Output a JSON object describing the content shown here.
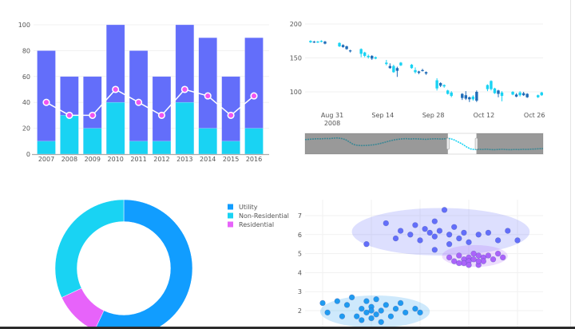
{
  "chart_data": [
    {
      "type": "bar",
      "categories": [
        "2007",
        "2008",
        "2009",
        "2010",
        "2011",
        "2012",
        "2013",
        "2014",
        "2015",
        "2016"
      ],
      "series": [
        {
          "type": "bar",
          "values": [
            80,
            60,
            60,
            100,
            80,
            60,
            100,
            90,
            60,
            90
          ],
          "color": "#636efa"
        },
        {
          "type": "bar",
          "values": [
            10,
            30,
            20,
            40,
            10,
            10,
            40,
            20,
            10,
            20
          ],
          "color": "#19d3f3"
        },
        {
          "type": "line",
          "values": [
            40,
            30,
            30,
            50,
            40,
            30,
            50,
            45,
            30,
            45
          ],
          "color": "#ef55f1"
        }
      ],
      "ylim": [
        0,
        100
      ],
      "yticks": [
        "0",
        "20",
        "40",
        "60",
        "80",
        "100"
      ],
      "grid": true
    },
    {
      "type": "candlestick",
      "increasing_color": "#19d3f3",
      "decreasing_color": "#1f6cb8",
      "ylim": [
        75,
        205
      ],
      "yticks": [
        "100",
        "150",
        "200"
      ],
      "xticks": [
        {
          "date": "2008-08-31",
          "label": "Aug 31",
          "sublabel": "2008"
        },
        {
          "date": "2008-09-14",
          "label": "Sep 14"
        },
        {
          "date": "2008-09-28",
          "label": "Sep 28"
        },
        {
          "date": "2008-10-12",
          "label": "Oct 12"
        },
        {
          "date": "2008-10-26",
          "label": "Oct 26"
        }
      ],
      "columns": [
        "date",
        "open",
        "high",
        "low",
        "close"
      ],
      "ohlc": [
        [
          "2008-08-25",
          173,
          176,
          172,
          175
        ],
        [
          "2008-08-26",
          174,
          175,
          172,
          173
        ],
        [
          "2008-08-27",
          173,
          175,
          172,
          174
        ],
        [
          "2008-08-28",
          174,
          176,
          173,
          175
        ],
        [
          "2008-08-29",
          174,
          175,
          170,
          171
        ],
        [
          "2008-09-02",
          167,
          173,
          166,
          172
        ],
        [
          "2008-09-03",
          169,
          170,
          165,
          166
        ],
        [
          "2008-09-04",
          167,
          168,
          162,
          163
        ],
        [
          "2008-09-05",
          161,
          162,
          158,
          160
        ],
        [
          "2008-09-08",
          156,
          164,
          151,
          163
        ],
        [
          "2008-09-09",
          153,
          159,
          151,
          158
        ],
        [
          "2008-09-10",
          151,
          155,
          149,
          153
        ],
        [
          "2008-09-11",
          153,
          154,
          147,
          149
        ],
        [
          "2008-09-12",
          149,
          152,
          148,
          151
        ],
        [
          "2008-09-15",
          141,
          147,
          139,
          143
        ],
        [
          "2008-09-16",
          138,
          142,
          134,
          135
        ],
        [
          "2008-09-17",
          129,
          140,
          128,
          138
        ],
        [
          "2008-09-18",
          135,
          137,
          122,
          131
        ],
        [
          "2008-09-19",
          139,
          144,
          138,
          143
        ],
        [
          "2008-09-22",
          135,
          141,
          134,
          140
        ],
        [
          "2008-09-23",
          129,
          136,
          127,
          132
        ],
        [
          "2008-09-24",
          130,
          131,
          126,
          128
        ],
        [
          "2008-09-25",
          132,
          134,
          130,
          131
        ],
        [
          "2008-09-26",
          129,
          130,
          125,
          127
        ],
        [
          "2008-09-29",
          105,
          120,
          102,
          117
        ],
        [
          "2008-09-30",
          113,
          114,
          107,
          109
        ],
        [
          "2008-10-01",
          108,
          111,
          106,
          110
        ],
        [
          "2008-10-02",
          97,
          103,
          96,
          102
        ],
        [
          "2008-10-03",
          94,
          101,
          92,
          99
        ],
        [
          "2008-10-06",
          97,
          98,
          88,
          91
        ],
        [
          "2008-10-07",
          95,
          101,
          88,
          90
        ],
        [
          "2008-10-08",
          92,
          93,
          85,
          89
        ],
        [
          "2008-10-09",
          89,
          95,
          87,
          93
        ],
        [
          "2008-10-10",
          100,
          102,
          85,
          87
        ],
        [
          "2008-10-13",
          104,
          111,
          101,
          110
        ],
        [
          "2008-10-14",
          104,
          117,
          102,
          116
        ],
        [
          "2008-10-15",
          98,
          106,
          97,
          105
        ],
        [
          "2008-10-16",
          102,
          103,
          92,
          97
        ],
        [
          "2008-10-17",
          94,
          101,
          86,
          99
        ],
        [
          "2008-10-20",
          96,
          101,
          95,
          100
        ],
        [
          "2008-10-21",
          96,
          98,
          92,
          93
        ],
        [
          "2008-10-22",
          95,
          101,
          93,
          99
        ],
        [
          "2008-10-23",
          98,
          100,
          94,
          95
        ],
        [
          "2008-10-24",
          97,
          98,
          91,
          92
        ],
        [
          "2008-10-27",
          92,
          96,
          91,
          95
        ],
        [
          "2008-10-28",
          95,
          100,
          94,
          99
        ]
      ],
      "rangeslider": {
        "visible": true,
        "selected_fraction": [
          0.6,
          0.72
        ],
        "values": [
          168,
          170,
          172,
          174,
          173,
          176,
          175,
          178,
          180,
          176,
          168,
          150,
          132,
          126,
          124,
          125,
          127,
          130,
          135,
          142,
          150,
          158,
          165,
          170,
          173,
          175,
          172,
          174,
          173,
          171,
          170,
          172,
          174,
          173,
          172,
          175,
          175,
          165,
          150,
          135,
          115,
          100,
          95,
          97,
          96,
          98,
          95,
          94,
          96,
          97,
          95,
          94,
          96,
          95,
          97,
          96,
          98,
          99,
          101,
          102
        ]
      }
    },
    {
      "type": "pie",
      "hole": 0.68,
      "labels": [
        "Utility",
        "Non-Residential",
        "Residential"
      ],
      "values": [
        57,
        32,
        11
      ],
      "colors": [
        "#119dff",
        "#19d3f3",
        "#e763fa"
      ],
      "legend_position": "top-right"
    },
    {
      "type": "scatter",
      "ylim": [
        0.8,
        7.6
      ],
      "xlim": [
        0.7,
        5.9
      ],
      "yticks": [
        "2",
        "3",
        "4",
        "5",
        "6",
        "7"
      ],
      "grid": true,
      "series": [
        {
          "color": "#1f9bf0",
          "x": [
            1.0,
            1.1,
            1.3,
            1.5,
            1.6,
            1.7,
            1.8,
            1.8,
            1.9,
            1.9,
            2.0,
            2.0,
            2.1,
            2.1,
            2.2,
            2.2,
            2.3,
            2.4,
            2.5,
            2.6,
            2.7,
            2.9,
            3.0,
            1.4,
            2.0
          ],
          "y": [
            2.4,
            1.9,
            2.5,
            2.3,
            2.7,
            1.7,
            2.1,
            1.5,
            2.5,
            1.9,
            2.2,
            1.6,
            2.6,
            1.8,
            2.0,
            1.4,
            2.3,
            1.7,
            2.1,
            2.4,
            1.9,
            2.1,
            1.9,
            1.7,
            2.0
          ]
        },
        {
          "color": "#636efa",
          "x": [
            1.9,
            2.3,
            2.5,
            2.6,
            2.8,
            2.9,
            3.0,
            3.1,
            3.2,
            3.3,
            3.3,
            3.4,
            3.5,
            3.6,
            3.6,
            3.7,
            3.8,
            3.9,
            4.0,
            4.2,
            4.4,
            4.6,
            4.8,
            5.0,
            3.3
          ],
          "y": [
            5.5,
            6.6,
            5.8,
            6.2,
            6.0,
            6.5,
            5.7,
            6.3,
            6.1,
            5.9,
            6.7,
            6.2,
            7.3,
            6.0,
            5.5,
            6.4,
            5.8,
            6.1,
            5.6,
            6.0,
            6.1,
            5.7,
            6.2,
            5.7,
            5.2
          ]
        },
        {
          "color": "#ab63fa",
          "x": [
            3.6,
            3.7,
            3.8,
            3.9,
            3.9,
            4.0,
            4.0,
            4.1,
            4.1,
            4.2,
            4.2,
            4.3,
            4.3,
            4.4,
            4.5,
            4.6,
            4.7,
            3.8,
            4.0,
            4.2
          ],
          "y": [
            4.8,
            4.6,
            4.9,
            4.7,
            4.5,
            4.8,
            4.6,
            5.0,
            4.7,
            4.9,
            4.4,
            4.8,
            4.6,
            4.9,
            4.7,
            5.0,
            4.8,
            4.5,
            4.4,
            4.6
          ]
        }
      ],
      "cluster_ellipses": [
        {
          "color": "#1f9bf0",
          "x0": 0.95,
          "x1": 3.2,
          "y0": 1.1,
          "y1": 2.8
        },
        {
          "color": "#636efa",
          "x0": 1.6,
          "x1": 5.25,
          "y0": 4.9,
          "y1": 7.4
        },
        {
          "color": "#ab63fa",
          "x0": 3.45,
          "x1": 4.8,
          "y0": 4.3,
          "y1": 5.45
        }
      ]
    }
  ]
}
